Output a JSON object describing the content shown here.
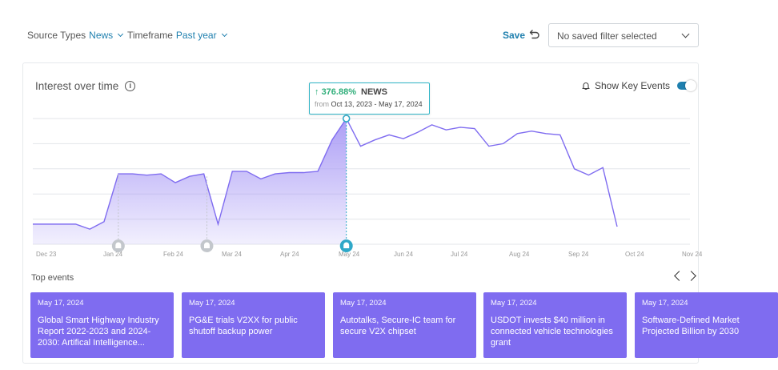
{
  "filters": {
    "source_types": {
      "label": "Source Types",
      "value": "News"
    },
    "timeframe": {
      "label": "Timeframe",
      "value": "Past year"
    }
  },
  "save_label": "Save",
  "undo_icon": "undo-icon",
  "saved_filter": {
    "value": "No saved filter selected"
  },
  "card": {
    "title": "Interest over time",
    "info_icon": "info-icon",
    "show_key_events": "Show Key Events",
    "show_key_events_on": true
  },
  "tooltip": {
    "percent": "376.88%",
    "source": "NEWS",
    "from_label": "from",
    "range": "Oct 13, 2023 - May 17, 2024"
  },
  "chart_data": {
    "type": "area",
    "title": "Interest over time",
    "xlabel": "",
    "ylabel": "",
    "grid": true,
    "x_ticks": [
      "Dec 23",
      "Jan 24",
      "Feb 24",
      "Mar 24",
      "Apr 24",
      "May 24",
      "Jun 24",
      "Jul 24",
      "Aug 24",
      "Sep 24",
      "Oct 24",
      "Nov 24"
    ],
    "ylim": [
      0,
      100
    ],
    "series": [
      {
        "values": [
          16,
          16,
          16,
          16,
          12,
          18,
          56,
          56,
          55,
          56,
          49,
          54,
          56,
          16,
          58,
          58,
          52,
          56,
          57,
          57,
          58,
          83,
          100,
          78,
          83,
          87,
          84,
          89,
          95,
          91,
          93,
          92,
          78,
          80,
          88,
          90,
          88,
          87,
          60,
          55,
          61,
          14
        ],
        "highlight_index": 22,
        "filled_until_index": 22
      }
    ],
    "key_events": [
      "Jan 24",
      "Mar 24",
      "May 24"
    ],
    "colors": {
      "line": "#7f6cf0",
      "fill": "#a899f5",
      "highlight": "#2fa8c8",
      "marker": "#c3c7cc"
    }
  },
  "top_events": {
    "label": "Top events",
    "items": [
      {
        "date": "May 17, 2024",
        "title": "Global Smart Highway Industry Report 2022-2023 and 2024-2030: Artifical Intelligence..."
      },
      {
        "date": "May 17, 2024",
        "title": "PG&E trials V2XX for public shutoff backup power"
      },
      {
        "date": "May 17, 2024",
        "title": "Autotalks, Secure-IC team for secure V2X chipset"
      },
      {
        "date": "May 17, 2024",
        "title": "USDOT invests $40 million in connected vehicle technologies grant"
      },
      {
        "date": "May 17, 2024",
        "title": "Software-Defined Market Projected Billion by 2030"
      }
    ]
  }
}
